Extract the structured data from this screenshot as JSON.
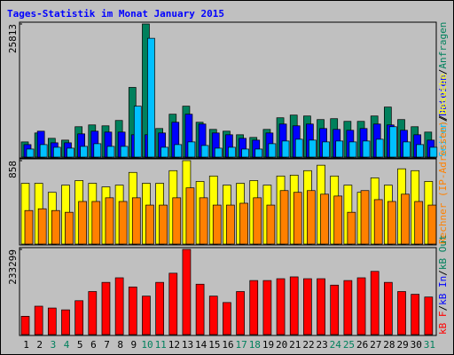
{
  "title": "Tages-Statistik im Monat January 2015",
  "legend_separator": "/",
  "chart_data": [
    {
      "type": "bar",
      "ylim": [
        0,
        25813
      ],
      "yticks": [
        25813
      ],
      "series": [
        {
          "name": "Anfragen",
          "color": "#00805c",
          "values": [
            2945,
            4677,
            3638,
            3291,
            5890,
            6236,
            6063,
            7102,
            13512,
            25813,
            5543,
            8315,
            9874,
            6756,
            5370,
            5024,
            4331,
            3811,
            5370,
            7622,
            8142,
            7969,
            7276,
            7449,
            6929,
            6929,
            7969,
            9701,
            7276,
            5890,
            4850
          ]
        },
        {
          "name": "Dateien",
          "color": "#0000ff",
          "values": [
            2425,
            5023,
            2771,
            2771,
            4503,
            5023,
            4850,
            4850,
            4330,
            4330,
            4676,
            6755,
            8314,
            6408,
            4676,
            4330,
            3637,
            3291,
            4676,
            6408,
            6062,
            6408,
            5542,
            5369,
            5196,
            5542,
            6408,
            6235,
            5196,
            4330,
            3291
          ]
        },
        {
          "name": "Seiten",
          "color": "#00c0ff",
          "values": [
            1559,
            2425,
            1905,
            1732,
            2078,
            2598,
            2078,
            2078,
            9872,
            23036,
            1905,
            2425,
            2944,
            2252,
            1732,
            1905,
            1559,
            1559,
            2598,
            3118,
            3464,
            3291,
            2944,
            3118,
            2944,
            3118,
            3464,
            5889,
            2944,
            2425,
            1905
          ]
        }
      ]
    },
    {
      "type": "bar",
      "ylim": [
        0,
        858
      ],
      "yticks": [
        858
      ],
      "series": [
        {
          "name": "Besuche",
          "color": "#ffff00",
          "values": [
            625,
            625,
            532,
            606,
            653,
            625,
            588,
            606,
            737,
            625,
            625,
            755,
            858,
            644,
            700,
            606,
            625,
            653,
            606,
            700,
            709,
            755,
            811,
            700,
            606,
            532,
            681,
            606,
            774,
            755,
            644
          ]
        },
        {
          "name": "Rechner (IP-Adressen)",
          "color": "#ff8000",
          "values": [
            345,
            363,
            345,
            327,
            438,
            438,
            476,
            438,
            476,
            401,
            401,
            476,
            578,
            476,
            401,
            401,
            420,
            476,
            401,
            550,
            532,
            550,
            513,
            494,
            327,
            550,
            457,
            438,
            513,
            438,
            401
          ]
        }
      ]
    },
    {
      "type": "bar",
      "ylim": [
        0,
        233299
      ],
      "yticks": [
        233299
      ],
      "categories": [
        "1",
        "2",
        "3",
        "4",
        "5",
        "6",
        "7",
        "8",
        "9",
        "10",
        "11",
        "12",
        "13",
        "14",
        "15",
        "16",
        "17",
        "18",
        "19",
        "20",
        "21",
        "22",
        "23",
        "24",
        "25",
        "26",
        "27",
        "28",
        "29",
        "30",
        "31"
      ],
      "category_colors": [
        "#000000",
        "#000000",
        "#00805c",
        "#00805c",
        "#000000",
        "#000000",
        "#000000",
        "#000000",
        "#000000",
        "#00805c",
        "#00805c",
        "#000000",
        "#000000",
        "#000000",
        "#000000",
        "#000000",
        "#00805c",
        "#00805c",
        "#000000",
        "#000000",
        "#000000",
        "#000000",
        "#000000",
        "#00805c",
        "#00805c",
        "#000000",
        "#000000",
        "#000000",
        "#000000",
        "#000000",
        "#00805c"
      ],
      "series": [
        {
          "name": "kB F",
          "color": "#ff0000",
          "values": [
            50172,
            77767,
            72749,
            67732,
            92818,
            117904,
            142990,
            155533,
            130447,
            105361,
            142990,
            168076,
            233299,
            137973,
            105361,
            87801,
            117904,
            148007,
            148007,
            153025,
            158042,
            153025,
            153025,
            135464,
            148007,
            155533,
            173093,
            142990,
            117904,
            110378,
            102853
          ]
        }
      ],
      "legend_only": [
        {
          "name": "kB In",
          "color": "#0000ff"
        },
        {
          "name": "kB Out",
          "color": "#00805c"
        }
      ]
    }
  ]
}
